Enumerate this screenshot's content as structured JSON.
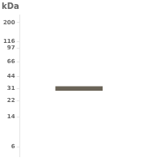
{
  "chart_data": {
    "type": "bar",
    "title": "kDa",
    "categories": [
      null
    ],
    "values": [
      [
        29.2,
        33.0
      ]
    ],
    "color": "#6a6458",
    "ylim": [
      4.5,
      250
    ],
    "yticks": [
      200,
      116,
      97,
      66,
      44,
      31,
      22,
      14,
      6
    ],
    "log": "y",
    "grid": false,
    "tick_labels": "y"
  }
}
